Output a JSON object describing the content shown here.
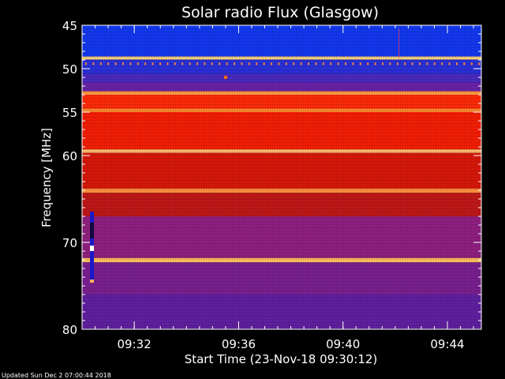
{
  "chart_data": {
    "type": "heatmap",
    "title": "Solar radio Flux (Glasgow)",
    "xlabel": "Start Time (23-Nov-18 09:30:12)",
    "ylabel": "Frequency [MHz]",
    "footer": "Updated Sun Dec  2 07:00:44 2018",
    "x_ticks": [
      {
        "minutes": 2,
        "label": "09:32"
      },
      {
        "minutes": 6,
        "label": "09:36"
      },
      {
        "minutes": 10,
        "label": "09:40"
      },
      {
        "minutes": 14,
        "label": "09:44"
      }
    ],
    "y_ticks": [
      45,
      50,
      55,
      60,
      70,
      80
    ],
    "ylim": [
      45,
      80
    ],
    "xlim_minutes": [
      0,
      15.3
    ],
    "colors": {
      "background": "#000000",
      "axis": "#ffffff",
      "low": "#1030ff",
      "mid": "#9020a0",
      "high": "#ff1a00",
      "peak": "#ffc060"
    },
    "bands": [
      {
        "f0": 45.0,
        "f1": 48.6,
        "color": "#1238f0"
      },
      {
        "f0": 48.6,
        "f1": 48.95,
        "color": "#ffd27a"
      },
      {
        "f0": 48.95,
        "f1": 50.6,
        "color": "#2a30d8"
      },
      {
        "f0": 50.6,
        "f1": 51.6,
        "color": "#4a2ac0"
      },
      {
        "f0": 51.6,
        "f1": 52.6,
        "color": "#6a22a8"
      },
      {
        "f0": 52.6,
        "f1": 53.0,
        "color": "#ff9a40"
      },
      {
        "f0": 53.0,
        "f1": 54.6,
        "color": "#ff2a08"
      },
      {
        "f0": 54.6,
        "f1": 55.0,
        "color": "#ff8a30"
      },
      {
        "f0": 55.0,
        "f1": 59.3,
        "color": "#f51e05"
      },
      {
        "f0": 59.3,
        "f1": 59.7,
        "color": "#ffc070"
      },
      {
        "f0": 59.7,
        "f1": 63.8,
        "color": "#d8180a"
      },
      {
        "f0": 63.8,
        "f1": 64.3,
        "color": "#ff9040"
      },
      {
        "f0": 64.3,
        "f1": 67.0,
        "color": "#c01818"
      },
      {
        "f0": 67.0,
        "f1": 71.8,
        "color": "#902080"
      },
      {
        "f0": 71.8,
        "f1": 72.3,
        "color": "#ffc060"
      },
      {
        "f0": 72.3,
        "f1": 76.0,
        "color": "#7a2090"
      },
      {
        "f0": 76.0,
        "f1": 80.0,
        "color": "#6020a0"
      }
    ]
  }
}
